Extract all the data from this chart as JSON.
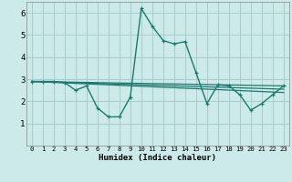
{
  "xlabel": "Humidex (Indice chaleur)",
  "xlim": [
    -0.5,
    23.5
  ],
  "ylim": [
    0,
    6.5
  ],
  "yticks": [
    1,
    2,
    3,
    4,
    5,
    6
  ],
  "xticks": [
    0,
    1,
    2,
    3,
    4,
    5,
    6,
    7,
    8,
    9,
    10,
    11,
    12,
    13,
    14,
    15,
    16,
    17,
    18,
    19,
    20,
    21,
    22,
    23
  ],
  "bg_color": "#cceaea",
  "grid_color": "#aacccc",
  "line_color": "#1a7a6e",
  "lines": [
    {
      "has_markers": true,
      "x": [
        0,
        1,
        2,
        3,
        4,
        5,
        6,
        7,
        8,
        9,
        10,
        11,
        12,
        13,
        14,
        15,
        16,
        17,
        18,
        19,
        20,
        21,
        22,
        23
      ],
      "y": [
        2.9,
        2.9,
        2.9,
        2.85,
        2.5,
        2.7,
        1.7,
        1.3,
        1.3,
        2.2,
        6.2,
        5.4,
        4.75,
        4.6,
        4.7,
        3.3,
        1.9,
        2.75,
        2.7,
        2.3,
        1.6,
        1.9,
        2.3,
        2.7
      ]
    },
    {
      "has_markers": false,
      "x": [
        0,
        23
      ],
      "y": [
        2.9,
        2.7
      ]
    },
    {
      "has_markers": false,
      "x": [
        0,
        23
      ],
      "y": [
        2.9,
        2.55
      ]
    },
    {
      "has_markers": false,
      "x": [
        0,
        23
      ],
      "y": [
        2.9,
        2.4
      ]
    }
  ]
}
